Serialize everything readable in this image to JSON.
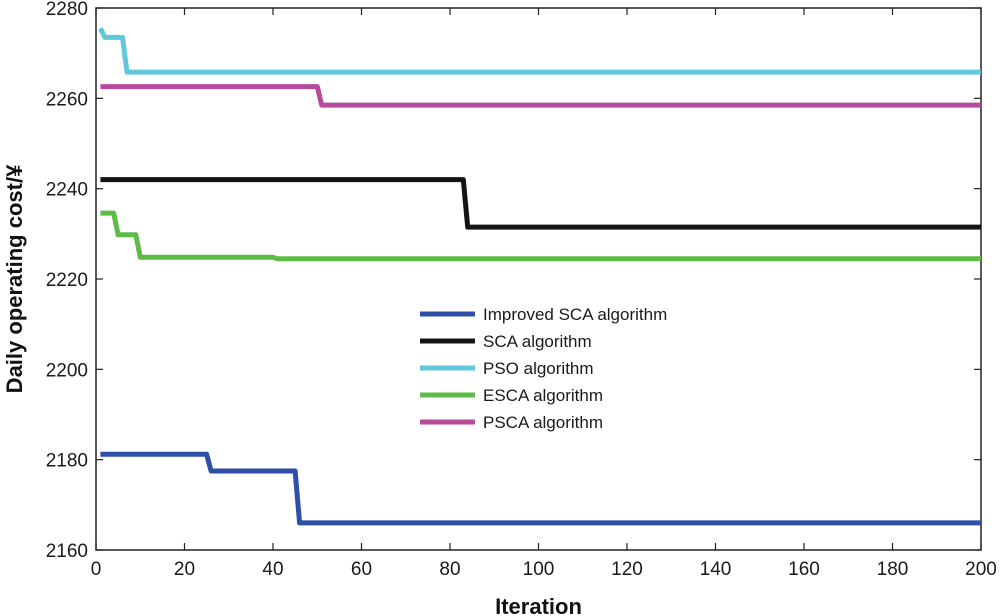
{
  "chart_data": {
    "type": "line",
    "title": "",
    "xlabel": "Iteration",
    "ylabel": "Daily operating cost/¥",
    "xlim": [
      0,
      200
    ],
    "ylim": [
      2160,
      2280
    ],
    "xticks": [
      0,
      20,
      40,
      60,
      80,
      100,
      120,
      140,
      160,
      180,
      200
    ],
    "yticks": [
      2160,
      2180,
      2200,
      2220,
      2240,
      2260,
      2280
    ],
    "legend_position": "center",
    "grid": false,
    "series": [
      {
        "name": "Improved SCA algorithm",
        "color": "#2E4EA8",
        "points": [
          [
            1,
            2181.2
          ],
          [
            25,
            2181.2
          ],
          [
            26,
            2177.5
          ],
          [
            45,
            2177.5
          ],
          [
            46,
            2166
          ],
          [
            200,
            2166
          ]
        ]
      },
      {
        "name": "SCA algorithm",
        "color": "#141414",
        "points": [
          [
            1,
            2242
          ],
          [
            83,
            2242
          ],
          [
            84,
            2231.5
          ],
          [
            200,
            2231.5
          ]
        ]
      },
      {
        "name": "PSO algorithm",
        "color": "#60C8DA",
        "points": [
          [
            1,
            2275.5
          ],
          [
            2,
            2273.5
          ],
          [
            6,
            2273.5
          ],
          [
            7,
            2265.8
          ],
          [
            200,
            2265.8
          ]
        ]
      },
      {
        "name": "ESCA algorithm",
        "color": "#5DBB46",
        "points": [
          [
            1,
            2234.6
          ],
          [
            4,
            2234.6
          ],
          [
            5,
            2229.8
          ],
          [
            9,
            2229.8
          ],
          [
            10,
            2224.8
          ],
          [
            40,
            2224.8
          ],
          [
            41,
            2224.5
          ],
          [
            200,
            2224.5
          ]
        ]
      },
      {
        "name": "PSCA algorithm",
        "color": "#B84A9E",
        "points": [
          [
            1,
            2262.6
          ],
          [
            50,
            2262.6
          ],
          [
            51,
            2258.5
          ],
          [
            200,
            2258.5
          ]
        ]
      }
    ]
  }
}
